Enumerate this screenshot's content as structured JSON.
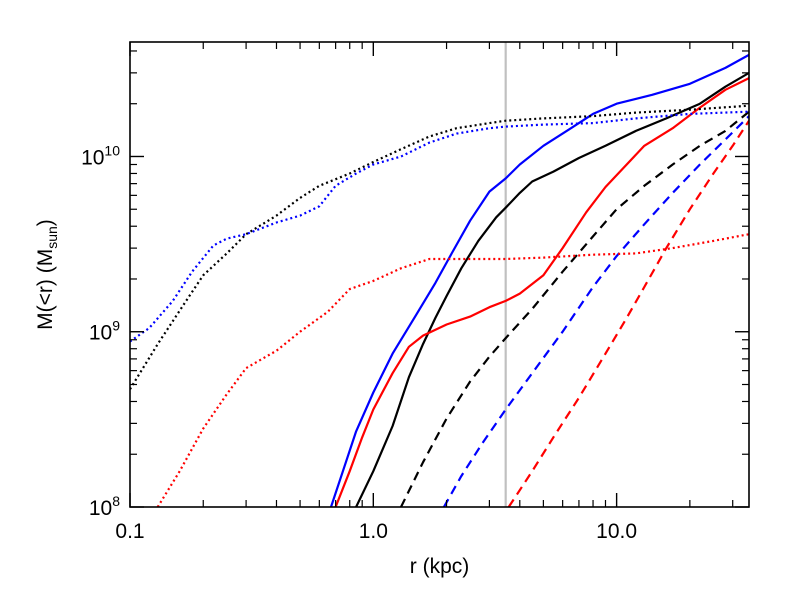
{
  "chart_data": {
    "type": "line",
    "xlabel": "r (kpc)",
    "ylabel": {
      "main": "M(<r) (M",
      "sub": "sun",
      "close": ")"
    },
    "xscale": "log",
    "yscale": "log",
    "xlim": [
      0.1,
      35
    ],
    "ylim": [
      100000000.0,
      45000000000.0
    ],
    "x_ticks": [
      {
        "value": 0.1,
        "label": "0.1"
      },
      {
        "value": 1.0,
        "label": "1.0"
      },
      {
        "value": 10.0,
        "label": "10.0"
      }
    ],
    "y_ticks": [
      {
        "value": 100000000.0,
        "base": "10",
        "exp": "8"
      },
      {
        "value": 1000000000.0,
        "base": "10",
        "exp": "9"
      },
      {
        "value": 10000000000.0,
        "base": "10",
        "exp": "10"
      }
    ],
    "grid": false,
    "legend": "none",
    "vline": {
      "x": 3.5,
      "color": "#c0c0c0"
    },
    "series": [
      {
        "color": "#0000ff",
        "style": "solid",
        "points": [
          [
            0.67,
            100000000.0
          ],
          [
            0.75,
            160000000.0
          ],
          [
            0.85,
            270000000.0
          ],
          [
            1.0,
            450000000.0
          ],
          [
            1.2,
            750000000.0
          ],
          [
            1.5,
            1250000000.0
          ],
          [
            1.8,
            1900000000.0
          ],
          [
            2.1,
            2800000000.0
          ],
          [
            2.5,
            4300000000.0
          ],
          [
            3.0,
            6300000000.0
          ],
          [
            3.5,
            7500000000.0
          ],
          [
            4.0,
            9000000000.0
          ],
          [
            5.0,
            11500000000.0
          ],
          [
            6.0,
            13500000000.0
          ],
          [
            7.0,
            15500000000.0
          ],
          [
            8.0,
            17500000000.0
          ],
          [
            10.0,
            20000000000.0
          ],
          [
            14.0,
            22500000000.0
          ],
          [
            20.0,
            26000000000.0
          ],
          [
            28.0,
            32000000000.0
          ],
          [
            35.0,
            38000000000.0
          ]
        ]
      },
      {
        "color": "#000000",
        "style": "solid",
        "points": [
          [
            0.85,
            100000000.0
          ],
          [
            1.0,
            160000000.0
          ],
          [
            1.2,
            290000000.0
          ],
          [
            1.4,
            550000000.0
          ],
          [
            1.6,
            850000000.0
          ],
          [
            1.8,
            1200000000.0
          ],
          [
            2.0,
            1600000000.0
          ],
          [
            2.3,
            2300000000.0
          ],
          [
            2.7,
            3300000000.0
          ],
          [
            3.2,
            4500000000.0
          ],
          [
            3.5,
            5100000000.0
          ],
          [
            4.0,
            6200000000.0
          ],
          [
            4.5,
            7200000000.0
          ],
          [
            5.5,
            8200000000.0
          ],
          [
            7.0,
            9800000000.0
          ],
          [
            9.0,
            11500000000.0
          ],
          [
            12.0,
            14000000000.0
          ],
          [
            16.0,
            16500000000.0
          ],
          [
            22.0,
            20000000000.0
          ],
          [
            28.0,
            25000000000.0
          ],
          [
            35.0,
            30000000000.0
          ]
        ]
      },
      {
        "color": "#ff0000",
        "style": "solid",
        "points": [
          [
            0.7,
            100000000.0
          ],
          [
            0.8,
            160000000.0
          ],
          [
            0.9,
            250000000.0
          ],
          [
            1.0,
            360000000.0
          ],
          [
            1.2,
            580000000.0
          ],
          [
            1.4,
            820000000.0
          ],
          [
            1.6,
            950000000.0
          ],
          [
            2.0,
            1100000000.0
          ],
          [
            2.5,
            1220000000.0
          ],
          [
            3.0,
            1380000000.0
          ],
          [
            3.5,
            1500000000.0
          ],
          [
            4.0,
            1650000000.0
          ],
          [
            5.0,
            2100000000.0
          ],
          [
            6.0,
            3000000000.0
          ],
          [
            7.5,
            4800000000.0
          ],
          [
            9.0,
            6700000000.0
          ],
          [
            11.0,
            9000000000.0
          ],
          [
            13.0,
            11500000000.0
          ],
          [
            17.0,
            14500000000.0
          ],
          [
            22.0,
            19000000000.0
          ],
          [
            28.0,
            24000000000.0
          ],
          [
            35.0,
            28000000000.0
          ]
        ]
      },
      {
        "color": "#000000",
        "style": "dashed",
        "points": [
          [
            1.3,
            100000000.0
          ],
          [
            1.6,
            180000000.0
          ],
          [
            2.0,
            320000000.0
          ],
          [
            2.5,
            520000000.0
          ],
          [
            3.0,
            720000000.0
          ],
          [
            3.5,
            920000000.0
          ],
          [
            4.5,
            1350000000.0
          ],
          [
            6.0,
            2200000000.0
          ],
          [
            8.0,
            3500000000.0
          ],
          [
            10.0,
            5000000000.0
          ],
          [
            13.0,
            6800000000.0
          ],
          [
            17.0,
            9000000000.0
          ],
          [
            22.0,
            11500000000.0
          ],
          [
            28.0,
            14000000000.0
          ],
          [
            35.0,
            18000000000.0
          ]
        ]
      },
      {
        "color": "#0000ff",
        "style": "dashed",
        "points": [
          [
            1.95,
            100000000.0
          ],
          [
            2.3,
            150000000.0
          ],
          [
            2.8,
            230000000.0
          ],
          [
            3.5,
            360000000.0
          ],
          [
            4.5,
            580000000.0
          ],
          [
            6.0,
            1000000000.0
          ],
          [
            8.0,
            1800000000.0
          ],
          [
            10.0,
            2700000000.0
          ],
          [
            13.0,
            4100000000.0
          ],
          [
            17.0,
            6200000000.0
          ],
          [
            22.0,
            9000000000.0
          ],
          [
            28.0,
            12500000000.0
          ],
          [
            35.0,
            17000000000.0
          ]
        ]
      },
      {
        "color": "#ff0000",
        "style": "dashed",
        "points": [
          [
            3.6,
            100000000.0
          ],
          [
            4.5,
            160000000.0
          ],
          [
            5.5,
            250000000.0
          ],
          [
            7.0,
            420000000.0
          ],
          [
            9.0,
            750000000.0
          ],
          [
            11.0,
            1200000000.0
          ],
          [
            13.0,
            1800000000.0
          ],
          [
            16.0,
            3000000000.0
          ],
          [
            20.0,
            5000000000.0
          ],
          [
            25.0,
            8000000000.0
          ],
          [
            30.0,
            11500000000.0
          ],
          [
            35.0,
            16000000000.0
          ]
        ]
      },
      {
        "color": "#000000",
        "style": "dotted",
        "points": [
          [
            0.1,
            470000000.0
          ],
          [
            0.13,
            850000000.0
          ],
          [
            0.17,
            1500000000.0
          ],
          [
            0.2,
            2100000000.0
          ],
          [
            0.25,
            2800000000.0
          ],
          [
            0.3,
            3600000000.0
          ],
          [
            0.4,
            4600000000.0
          ],
          [
            0.5,
            5800000000.0
          ],
          [
            0.6,
            6800000000.0
          ],
          [
            0.8,
            8000000000.0
          ],
          [
            1.0,
            9300000000.0
          ],
          [
            1.3,
            11000000000.0
          ],
          [
            1.7,
            13000000000.0
          ],
          [
            2.2,
            14500000000.0
          ],
          [
            3.0,
            15500000000.0
          ],
          [
            3.5,
            16000000000.0
          ],
          [
            5.0,
            16500000000.0
          ],
          [
            8.0,
            17000000000.0
          ],
          [
            12.0,
            17800000000.0
          ],
          [
            20.0,
            18500000000.0
          ],
          [
            35.0,
            19500000000.0
          ]
        ]
      },
      {
        "color": "#0000ff",
        "style": "dotted",
        "points": [
          [
            0.1,
            880000000.0
          ],
          [
            0.12,
            1050000000.0
          ],
          [
            0.15,
            1500000000.0
          ],
          [
            0.18,
            2200000000.0
          ],
          [
            0.22,
            3100000000.0
          ],
          [
            0.25,
            3400000000.0
          ],
          [
            0.3,
            3600000000.0
          ],
          [
            0.4,
            4200000000.0
          ],
          [
            0.5,
            4600000000.0
          ],
          [
            0.6,
            5200000000.0
          ],
          [
            0.7,
            6800000000.0
          ],
          [
            0.85,
            8000000000.0
          ],
          [
            1.0,
            9000000000.0
          ],
          [
            1.3,
            10000000000.0
          ],
          [
            1.7,
            12000000000.0
          ],
          [
            2.2,
            13500000000.0
          ],
          [
            3.0,
            14500000000.0
          ],
          [
            3.5,
            14800000000.0
          ],
          [
            5.0,
            15200000000.0
          ],
          [
            8.0,
            15500000000.0
          ],
          [
            12.0,
            16500000000.0
          ],
          [
            20.0,
            17500000000.0
          ],
          [
            35.0,
            18000000000.0
          ]
        ]
      },
      {
        "color": "#ff0000",
        "style": "dotted",
        "points": [
          [
            0.13,
            100000000.0
          ],
          [
            0.16,
            160000000.0
          ],
          [
            0.2,
            280000000.0
          ],
          [
            0.25,
            440000000.0
          ],
          [
            0.3,
            620000000.0
          ],
          [
            0.4,
            780000000.0
          ],
          [
            0.5,
            1000000000.0
          ],
          [
            0.65,
            1300000000.0
          ],
          [
            0.8,
            1750000000.0
          ],
          [
            1.0,
            1950000000.0
          ],
          [
            1.3,
            2300000000.0
          ],
          [
            1.7,
            2600000000.0
          ],
          [
            2.5,
            2600000000.0
          ],
          [
            3.5,
            2600000000.0
          ],
          [
            5.0,
            2650000000.0
          ],
          [
            8.0,
            2750000000.0
          ],
          [
            12.0,
            2800000000.0
          ],
          [
            17.0,
            3000000000.0
          ],
          [
            25.0,
            3300000000.0
          ],
          [
            35.0,
            3600000000.0
          ]
        ]
      }
    ]
  }
}
